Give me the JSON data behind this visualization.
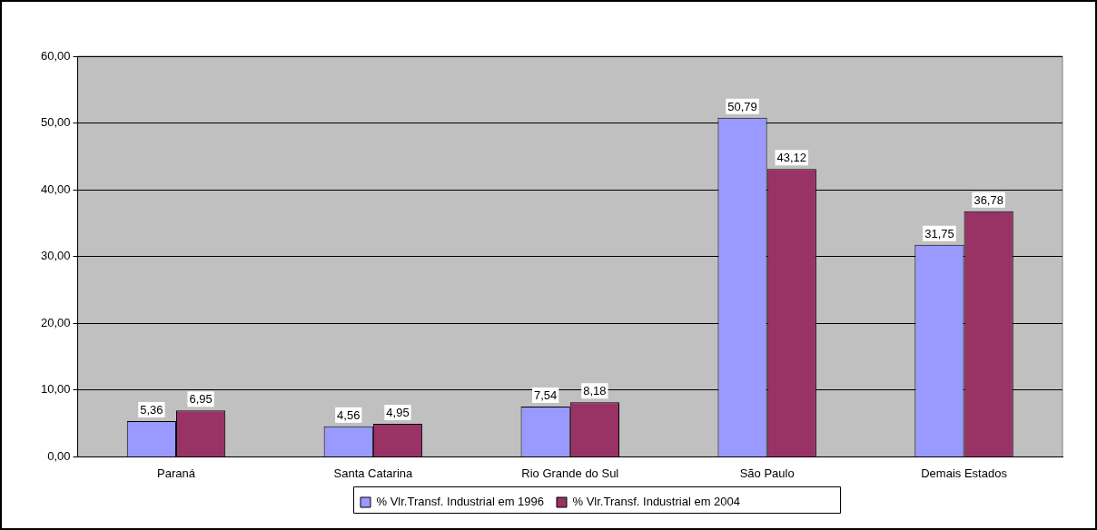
{
  "chart_data": {
    "type": "bar",
    "categories": [
      "Paraná",
      "Santa Catarina",
      "Rio Grande do Sul",
      "São Paulo",
      "Demais Estados"
    ],
    "series": [
      {
        "name": "% Vlr.Transf. Industrial em 1996",
        "color": "#9999ff",
        "values": [
          5.36,
          4.56,
          7.54,
          50.79,
          31.75
        ],
        "value_labels": [
          "5,36",
          "4,56",
          "7,54",
          "50,79",
          "31,75"
        ]
      },
      {
        "name": "% Vlr.Transf. Industrial em 2004",
        "color": "#993366",
        "values": [
          6.95,
          4.95,
          8.18,
          43.12,
          36.78
        ],
        "value_labels": [
          "6,95",
          "4,95",
          "8,18",
          "43,12",
          "36,78"
        ]
      }
    ],
    "ylim": [
      0,
      60
    ],
    "yticks": [
      {
        "value": 0,
        "label": "0,00"
      },
      {
        "value": 10,
        "label": "10,00"
      },
      {
        "value": 20,
        "label": "20,00"
      },
      {
        "value": 30,
        "label": "30,00"
      },
      {
        "value": 40,
        "label": "40,00"
      },
      {
        "value": 50,
        "label": "50,00"
      },
      {
        "value": 60,
        "label": "60,00"
      }
    ],
    "grid": "y",
    "legend": "bottom"
  }
}
